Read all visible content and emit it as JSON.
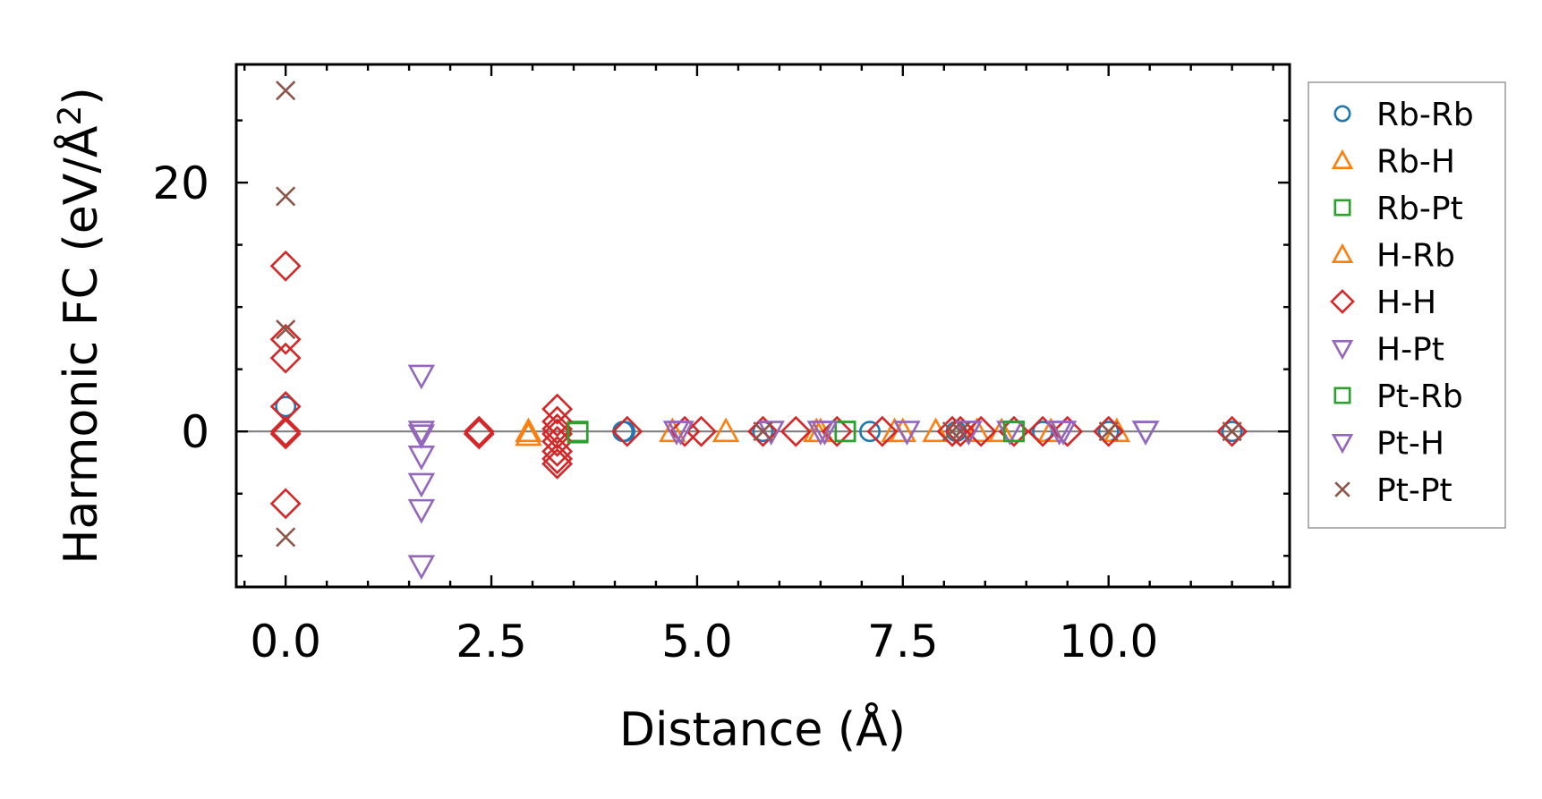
{
  "chart_data": {
    "type": "scatter",
    "title": "",
    "xlabel": "Distance (Å)",
    "ylabel_main": "Harmonic FC (eV/Å",
    "ylabel_sup": "2",
    "ylabel_close": ")",
    "xlim": [
      -0.6,
      12.2
    ],
    "ylim": [
      -12.5,
      29.5
    ],
    "xticks": [
      0.0,
      2.5,
      5.0,
      7.5,
      10.0
    ],
    "xtick_labels": [
      "0.0",
      "2.5",
      "5.0",
      "7.5",
      "10.0"
    ],
    "yticks": [
      0,
      20
    ],
    "ytick_labels": [
      "0",
      "20"
    ],
    "grid": false,
    "legend_position": "outside-right",
    "reference_line_y": 0,
    "series": [
      {
        "name": "Rb-Rb",
        "marker": "circle",
        "color": "#1f77b4",
        "x": [
          0.0,
          4.1,
          4.12,
          5.8,
          7.1,
          8.15,
          9.2,
          10.0,
          11.5
        ],
        "y": [
          2.0,
          0.0,
          0.0,
          0.0,
          0.0,
          0.0,
          0.0,
          0.0,
          0.0
        ]
      },
      {
        "name": "Rb-H",
        "marker": "triangle-up",
        "color": "#ff7f0e",
        "x": [
          2.95,
          4.7,
          5.35,
          6.45,
          7.5,
          7.9,
          8.4,
          8.7,
          10.1
        ],
        "y": [
          0.0,
          0.0,
          0.0,
          0.0,
          0.0,
          0.0,
          0.0,
          0.0,
          0.0
        ]
      },
      {
        "name": "Rb-Pt",
        "marker": "square",
        "color": "#2ca02c",
        "x": [
          3.55,
          6.8,
          8.85
        ],
        "y": [
          0.0,
          0.0,
          0.0
        ]
      },
      {
        "name": "H-Rb",
        "marker": "triangle-up",
        "color": "#ff7f0e",
        "x": [
          2.95,
          6.5,
          7.4,
          9.3
        ],
        "y": [
          -0.3,
          0.0,
          0.0,
          0.0
        ]
      },
      {
        "name": "H-H",
        "marker": "diamond",
        "color": "#d62728",
        "x": [
          0.0,
          0.0,
          0.0,
          0.0,
          0.0,
          0.0,
          0.0,
          2.35,
          2.35,
          3.3,
          3.3,
          3.3,
          3.3,
          3.3,
          3.3,
          3.3,
          3.3,
          4.15,
          4.85,
          5.05,
          5.8,
          6.2,
          6.7,
          7.25,
          8.1,
          8.2,
          8.45,
          8.85,
          9.2,
          9.5,
          10.0,
          11.5
        ],
        "y": [
          13.3,
          7.4,
          5.9,
          2.0,
          0.0,
          -0.2,
          -5.8,
          0.0,
          -0.2,
          1.8,
          0.8,
          0.2,
          -0.2,
          -0.8,
          -1.6,
          -2.2,
          -2.6,
          0.0,
          0.0,
          0.0,
          0.0,
          0.0,
          0.0,
          0.0,
          0.0,
          0.0,
          0.0,
          0.0,
          0.0,
          0.0,
          0.0,
          0.0
        ]
      },
      {
        "name": "H-Pt",
        "marker": "triangle-down",
        "color": "#9467bd",
        "x": [
          1.65,
          1.65,
          1.65,
          1.65,
          1.65,
          1.65,
          4.8,
          5.9,
          6.5,
          8.3,
          8.8,
          9.45,
          10.45
        ],
        "y": [
          4.5,
          0.0,
          -0.3,
          -2.0,
          -4.2,
          -6.3,
          0.0,
          0.0,
          0.0,
          0.0,
          0.0,
          0.0,
          0.0
        ]
      },
      {
        "name": "Pt-Rb",
        "marker": "square",
        "color": "#2ca02c",
        "x": [
          3.55,
          6.8,
          8.85
        ],
        "y": [
          -0.1,
          0.0,
          0.0
        ]
      },
      {
        "name": "Pt-H",
        "marker": "triangle-down",
        "color": "#9467bd",
        "x": [
          1.65,
          4.75,
          6.55,
          7.55,
          8.3,
          9.4,
          10.45
        ],
        "y": [
          -10.8,
          0.0,
          0.0,
          0.0,
          0.0,
          0.0,
          0.0
        ]
      },
      {
        "name": "Pt-Pt",
        "marker": "x",
        "color": "#8c564b",
        "x": [
          0.0,
          0.0,
          0.0,
          0.0,
          5.8,
          8.1,
          8.2,
          10.0,
          11.5
        ],
        "y": [
          27.4,
          18.9,
          8.2,
          -8.5,
          0.0,
          0.0,
          0.0,
          0.0,
          0.0
        ]
      }
    ]
  }
}
